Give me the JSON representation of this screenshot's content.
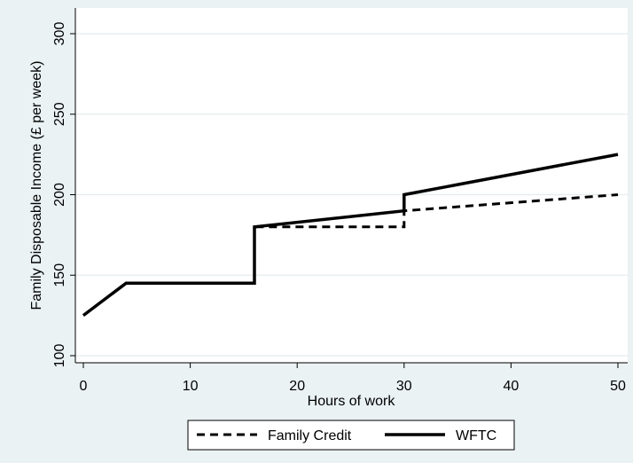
{
  "chart_data": {
    "type": "line",
    "title": "",
    "xlabel": "Hours of work",
    "ylabel": "Family Disposable Income (£ per week)",
    "xlim": [
      0,
      50
    ],
    "ylim": [
      100,
      300
    ],
    "xticks": [
      0,
      10,
      20,
      30,
      40,
      50
    ],
    "yticks": [
      100,
      150,
      200,
      250,
      300
    ],
    "grid": "horizontal",
    "legend_position": "bottom",
    "series": [
      {
        "name": "Family Credit",
        "style": "dashed",
        "color": "#000000",
        "points": [
          [
            0,
            125
          ],
          [
            4,
            145
          ],
          [
            16,
            145
          ],
          [
            16,
            180
          ],
          [
            30,
            180
          ],
          [
            30,
            190
          ],
          [
            50,
            200
          ]
        ]
      },
      {
        "name": "WFTC",
        "style": "solid",
        "color": "#000000",
        "points": [
          [
            0,
            125
          ],
          [
            4,
            145
          ],
          [
            16,
            145
          ],
          [
            16,
            180
          ],
          [
            30,
            190
          ],
          [
            30,
            200
          ],
          [
            50,
            225
          ]
        ]
      }
    ]
  },
  "colors": {
    "background": "#eaf2f3",
    "plot_area": "#ffffff",
    "grid": "#e4ecee"
  }
}
